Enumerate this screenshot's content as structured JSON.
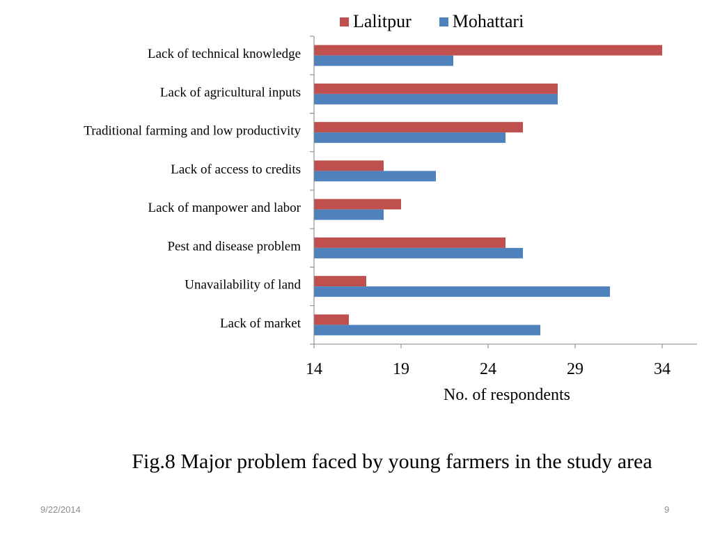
{
  "chart_data": {
    "type": "bar",
    "orientation": "horizontal",
    "categories": [
      "Lack of technical knowledge",
      "Lack of agricultural inputs",
      "Traditional farming and low productivity",
      "Lack of access to credits",
      "Lack of manpower and labor",
      "Pest and disease problem",
      "Unavailability of land",
      "Lack of market"
    ],
    "series": [
      {
        "name": "Lalitpur",
        "color": "#c0504d",
        "values": [
          34,
          28,
          26,
          18,
          19,
          25,
          17,
          16
        ]
      },
      {
        "name": "Mohattari",
        "color": "#4f81bd",
        "values": [
          22,
          28,
          25,
          21,
          18,
          26,
          31,
          27
        ]
      }
    ],
    "xlabel": "No. of respondents",
    "xlim": [
      14,
      36
    ],
    "xticks": [
      14,
      19,
      24,
      29,
      34
    ],
    "grid": false,
    "legend_position": "top"
  },
  "caption": "Fig.8 Major problem faced by young farmers in the study area",
  "footer": {
    "date": "9/22/2014",
    "page": "9"
  }
}
